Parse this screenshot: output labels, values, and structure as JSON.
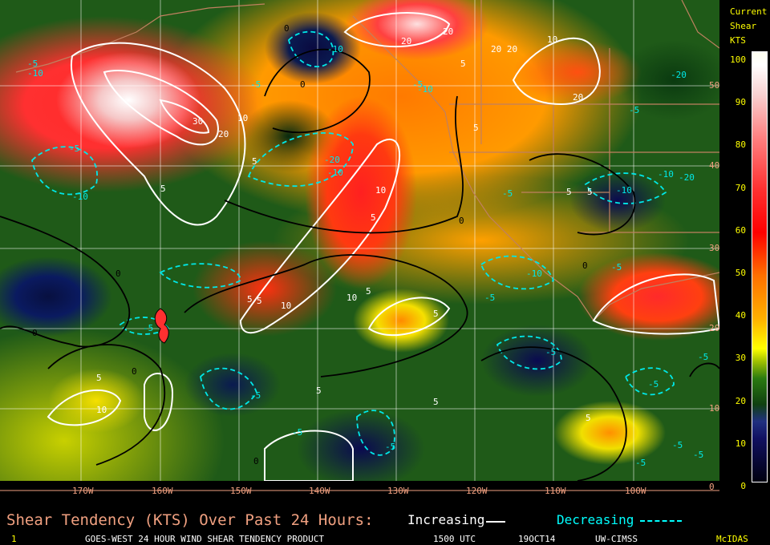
{
  "map": {
    "product": "Shear Tendency",
    "longitude_labels": [
      "170W",
      "160W",
      "150W",
      "140W",
      "130W",
      "120W",
      "110W",
      "100W"
    ],
    "latitude_labels": [
      "50",
      "40",
      "30",
      "20",
      "10",
      "0"
    ],
    "contour_labels": [
      {
        "value": "30",
        "sign": "increasing"
      },
      {
        "value": "20",
        "sign": "increasing"
      },
      {
        "value": "10",
        "sign": "increasing"
      },
      {
        "value": "5",
        "sign": "increasing"
      },
      {
        "value": "5",
        "sign": "increasing"
      },
      {
        "value": "20",
        "sign": "increasing"
      },
      {
        "value": "20",
        "sign": "increasing"
      },
      {
        "value": "20 20",
        "sign": "increasing"
      },
      {
        "value": "10",
        "sign": "increasing"
      },
      {
        "value": "20",
        "sign": "increasing"
      },
      {
        "value": "5",
        "sign": "increasing"
      },
      {
        "value": "10",
        "sign": "increasing"
      },
      {
        "value": "5",
        "sign": "increasing"
      },
      {
        "value": "5",
        "sign": "increasing"
      },
      {
        "value": "10",
        "sign": "increasing"
      },
      {
        "value": "10",
        "sign": "increasing"
      },
      {
        "value": "5",
        "sign": "increasing"
      },
      {
        "value": "5",
        "sign": "increasing"
      },
      {
        "value": "5",
        "sign": "increasing"
      },
      {
        "value": "5",
        "sign": "increasing"
      },
      {
        "value": "10",
        "sign": "increasing"
      },
      {
        "value": "5",
        "sign": "increasing"
      },
      {
        "value": "5",
        "sign": "increasing"
      },
      {
        "value": "5",
        "sign": "increasing"
      },
      {
        "value": "5",
        "sign": "increasing"
      },
      {
        "value": "5",
        "sign": "increasing"
      },
      {
        "value": "5",
        "sign": "increasing"
      },
      {
        "value": "-10",
        "sign": "decreasing"
      },
      {
        "value": "-5",
        "sign": "decreasing"
      },
      {
        "value": "-5",
        "sign": "decreasing"
      },
      {
        "value": "-10",
        "sign": "decreasing"
      },
      {
        "value": "-5",
        "sign": "decreasing"
      },
      {
        "value": "-10",
        "sign": "decreasing"
      },
      {
        "value": "-20",
        "sign": "decreasing"
      },
      {
        "value": "-10",
        "sign": "decreasing"
      },
      {
        "value": "-10",
        "sign": "decreasing"
      },
      {
        "value": "-5",
        "sign": "decreasing"
      },
      {
        "value": "-20",
        "sign": "decreasing"
      },
      {
        "value": "-5",
        "sign": "decreasing"
      },
      {
        "value": "-10",
        "sign": "decreasing"
      },
      {
        "value": "-20",
        "sign": "decreasing"
      },
      {
        "value": "-10",
        "sign": "decreasing"
      },
      {
        "value": "-5",
        "sign": "decreasing"
      },
      {
        "value": "-5",
        "sign": "decreasing"
      },
      {
        "value": "-10",
        "sign": "decreasing"
      },
      {
        "value": "-5",
        "sign": "decreasing"
      },
      {
        "value": "-5",
        "sign": "decreasing"
      },
      {
        "value": "-5",
        "sign": "decreasing"
      },
      {
        "value": "-5",
        "sign": "decreasing"
      },
      {
        "value": "-5",
        "sign": "decreasing"
      },
      {
        "value": "-5",
        "sign": "decreasing"
      },
      {
        "value": "-5",
        "sign": "decreasing"
      },
      {
        "value": "-5",
        "sign": "decreasing"
      },
      {
        "value": "-5",
        "sign": "decreasing"
      },
      {
        "value": "-5",
        "sign": "decreasing"
      },
      {
        "value": "-5",
        "sign": "decreasing"
      },
      {
        "value": "0",
        "sign": "zero"
      },
      {
        "value": "0",
        "sign": "zero"
      },
      {
        "value": "0",
        "sign": "zero"
      },
      {
        "value": "0",
        "sign": "zero"
      },
      {
        "value": "0",
        "sign": "zero"
      },
      {
        "value": "0",
        "sign": "zero"
      },
      {
        "value": "0",
        "sign": "zero"
      },
      {
        "value": "0",
        "sign": "zero"
      }
    ]
  },
  "legend": {
    "title_line1": "Current",
    "title_line2": "Shear",
    "title_line3": "KTS",
    "ticks": [
      "100",
      "90",
      "80",
      "70",
      "60",
      "50",
      "40",
      "30",
      "20",
      "10",
      "0"
    ],
    "colors": {
      "low": "#000010",
      "mid": "#ffff00",
      "high": "#ffffff"
    }
  },
  "caption": {
    "title": "Shear Tendency (KTS) Over Past 24 Hours:",
    "increasing_label": "Increasing",
    "decreasing_label": "Decreasing",
    "increasing_color": "#ffffff",
    "decreasing_color": "#00ffff"
  },
  "footer": {
    "frame": "1",
    "product": "GOES-WEST 24 HOUR WIND SHEAR TENDENCY PRODUCT",
    "time": "1500 UTC",
    "date": "19OCT14",
    "source": "UW-CIMSS",
    "software": "McIDAS"
  }
}
